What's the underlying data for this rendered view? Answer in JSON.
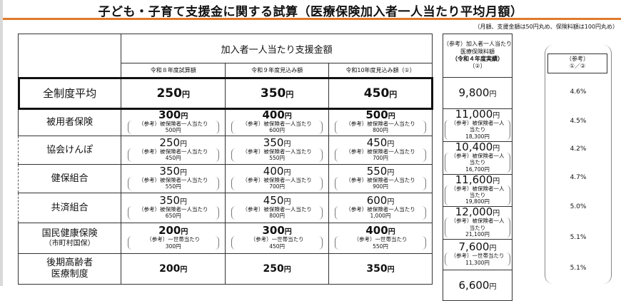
{
  "title": "子ども・子育て支援金に関する試算（医療保険加入者一人当たり平均月額）",
  "note": "（月額、支援金額は50円丸め、保険料額は100円丸め）",
  "header": {
    "main": "加入者一人当たり支援金額",
    "cols": [
      "令和８年度試算額",
      "令和９年度見込み額",
      "令和10年度見込み額（①）"
    ],
    "ref_line1": "（参考）加入者一人当たり",
    "ref_line2": "医療保険料額",
    "ref_line3": "（令和４年度実績）",
    "ref_line4": "（②）",
    "ratio_line1": "（参考）",
    "ratio_line2": "①／②"
  },
  "yen": "円",
  "rows": [
    {
      "label": "全制度平均",
      "values": [
        "250",
        "350",
        "450"
      ],
      "ref": "9,800",
      "ratio": "4.6%"
    },
    {
      "label": "被用者保険",
      "values": [
        "300",
        "400",
        "500"
      ],
      "note": "（参考）被保険者一人当たり",
      "notes": [
        "500円",
        "600円",
        "800円"
      ],
      "ref": "11,000",
      "ref_note": "（参考）被保険者一人当たり",
      "ref_sub": "18,300円",
      "ratio": "4.5%"
    },
    {
      "label": "協会けんぽ",
      "values": [
        "250",
        "350",
        "450"
      ],
      "note": "（参考）被保険者一人当たり",
      "notes": [
        "450円",
        "550円",
        "700円"
      ],
      "ref": "10,400",
      "ref_note": "（参考）被保険者一人当たり",
      "ref_sub": "16,700円",
      "ratio": "4.2%"
    },
    {
      "label": "健保組合",
      "values": [
        "350",
        "400",
        "550"
      ],
      "note": "（参考）被保険者一人当たり",
      "notes": [
        "550円",
        "700円",
        "900円"
      ],
      "ref": "11,600",
      "ref_note": "（参考）被保険者一人当たり",
      "ref_sub": "19,800円",
      "ratio": "4.7%"
    },
    {
      "label": "共済組合",
      "values": [
        "350",
        "450",
        "600"
      ],
      "note": "（参考）被保険者一人当たり",
      "notes": [
        "650円",
        "800円",
        "1,000円"
      ],
      "ref": "12,000",
      "ref_note": "（参考）被保険者一人当たり",
      "ref_sub": "21,100円",
      "ratio": "5.0%"
    },
    {
      "label": "国民健康保険",
      "label2": "（市町村国保）",
      "values": [
        "200",
        "300",
        "400"
      ],
      "note": "（参考）一世帯当たり",
      "notes": [
        "300円",
        "450円",
        "550円"
      ],
      "ref": "7,600",
      "ref_note": "（参考）一世帯当たり",
      "ref_sub": "11,300円",
      "ratio": "5.1%"
    },
    {
      "label": "後期高齢者",
      "label2": "医療制度",
      "values": [
        "200",
        "250",
        "350"
      ],
      "ref": "6,600",
      "ratio": "5.1%"
    }
  ]
}
